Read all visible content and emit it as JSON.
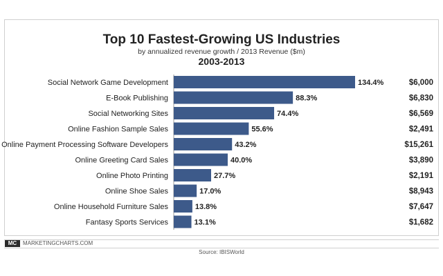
{
  "chart_data": {
    "type": "bar",
    "orientation": "horizontal",
    "title": "Top 10 Fastest-Growing US Industries",
    "subtitle": "by annualized revenue growth / 2013 Revenue ($m)",
    "period": "2003-2013",
    "categories": [
      "Social Network Game Development",
      "E-Book Publishing",
      "Social Networking Sites",
      "Online Fashion Sample Sales",
      "Online Payment Processing Software Developers",
      "Online Greeting Card Sales",
      "Online Photo Printing",
      "Online Shoe Sales",
      "Online Household Furniture Sales",
      "Fantasy Sports Services"
    ],
    "values": [
      134.4,
      88.3,
      74.4,
      55.6,
      43.2,
      40.0,
      27.7,
      17.0,
      13.8,
      13.1
    ],
    "value_labels": [
      "134.4%",
      "88.3%",
      "74.4%",
      "55.6%",
      "43.2%",
      "40.0%",
      "27.7%",
      "17.0%",
      "13.8%",
      "13.1%"
    ],
    "revenue_labels": [
      "$6,000",
      "$6,830",
      "$6,569",
      "$2,491",
      "$15,261",
      "$3,890",
      "$2,191",
      "$8,943",
      "$7,647",
      "$1,682"
    ],
    "xlim": [
      0,
      134.4
    ],
    "bar_color": "#3d5a8a",
    "grid": false
  },
  "footer": {
    "logo_text": "MC",
    "brand": "MARKETINGCHARTS.COM",
    "source": "Source: IBISWorld"
  }
}
